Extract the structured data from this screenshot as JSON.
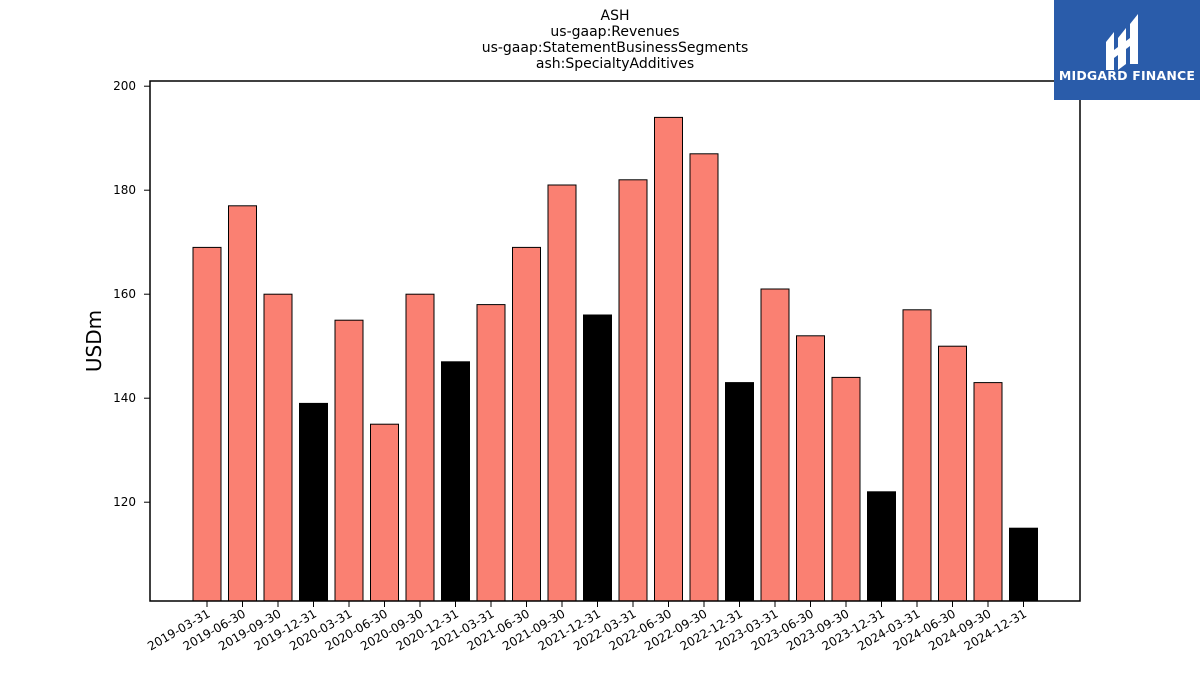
{
  "logo": {
    "text": "MIDGARD FINANCE",
    "bg_color": "#2a5caa"
  },
  "chart_data": {
    "type": "bar",
    "title_lines": [
      "ASH",
      "us-gaap:Revenues",
      "us-gaap:StatementBusinessSegments",
      "ash:SpecialtyAdditives"
    ],
    "xlabel": "",
    "ylabel": "USDm",
    "ylim": [
      101,
      201
    ],
    "yticks": [
      120,
      140,
      160,
      180,
      200
    ],
    "grid": false,
    "colors": {
      "quarter": "#fa8072",
      "year_end": "#000000"
    },
    "categories": [
      "2019-03-31",
      "2019-06-30",
      "2019-09-30",
      "2019-12-31",
      "2020-03-31",
      "2020-06-30",
      "2020-09-30",
      "2020-12-31",
      "2021-03-31",
      "2021-06-30",
      "2021-09-30",
      "2021-12-31",
      "2022-03-31",
      "2022-06-30",
      "2022-09-30",
      "2022-12-31",
      "2023-03-31",
      "2023-06-30",
      "2023-09-30",
      "2023-12-31",
      "2024-03-31",
      "2024-06-30",
      "2024-09-30",
      "2024-12-31"
    ],
    "values": [
      169,
      177,
      160,
      139,
      155,
      135,
      160,
      147,
      158,
      169,
      181,
      156,
      182,
      194,
      187,
      143,
      161,
      152,
      144,
      122,
      157,
      150,
      143,
      115
    ]
  }
}
